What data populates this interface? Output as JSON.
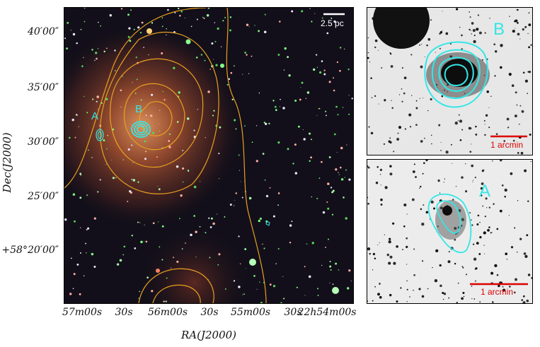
{
  "main_image": {
    "scale_bar_label": "2.5 pc",
    "source_labels": {
      "a": "A",
      "b": "B"
    },
    "colors": {
      "background": "#120f1a",
      "nebula": "#c0643a",
      "contour_orange": "#e8a020",
      "contour_cyan": "#35e6e6",
      "scale_bar": "#ffffff"
    }
  },
  "axes": {
    "x_title": "RA(J2000)",
    "y_title": "Dec(J2000)",
    "x_ticks": [
      "57m00s",
      "30s",
      "56m00s",
      "30s",
      "55m00s",
      "30s",
      "22h54m00s"
    ],
    "y_ticks": [
      "40′00″",
      "35′00″",
      "30′00″",
      "25′00″",
      "+58°20′00″"
    ]
  },
  "inset_b": {
    "label": "B",
    "scale_label": "1 arcmin",
    "colors": {
      "contour": "#35e6e6",
      "scale_bar": "#dd0000",
      "background": "#e7e7e7"
    }
  },
  "inset_a": {
    "label": "A",
    "scale_label": "1 arcmin",
    "colors": {
      "contour": "#35e6e6",
      "scale_bar": "#dd0000",
      "background": "#ececec"
    }
  }
}
